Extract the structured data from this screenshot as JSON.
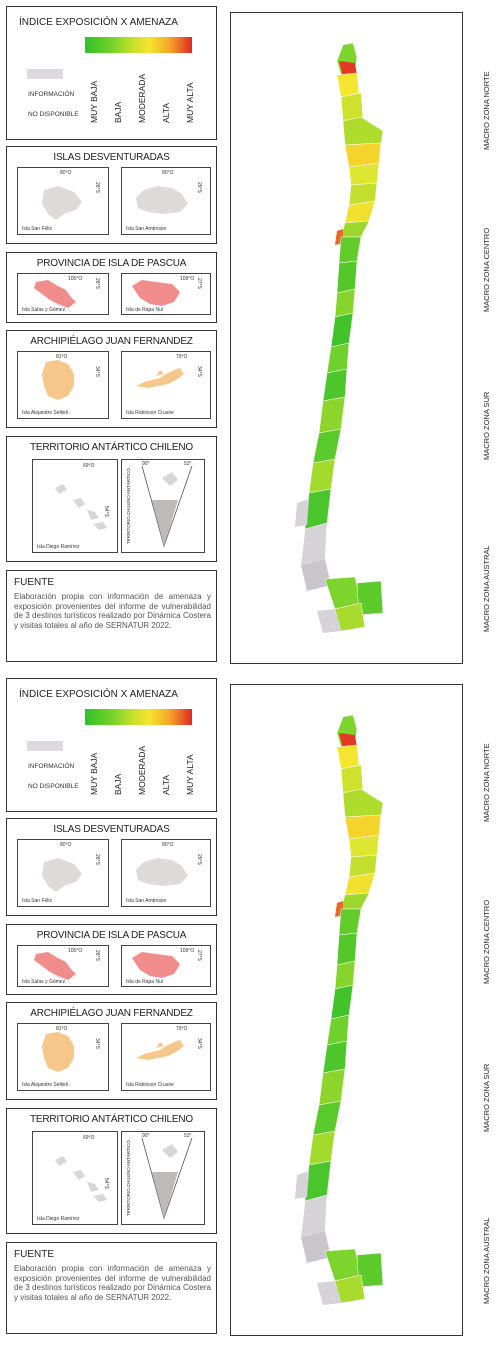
{
  "legend": {
    "title": "ÍNDICE EXPOSICIÓN X AMENAZA",
    "no_data_line1": "INFORMACIÓN",
    "no_data_line2": "NO DISPONIBLE",
    "classes": [
      "MUY BAJA",
      "BAJA",
      "MODERADA",
      "ALTA",
      "MUY ALTA"
    ],
    "gradient_colors": [
      "#2fc02a",
      "#74d22a",
      "#c8e02c",
      "#f5e52d",
      "#f3a129",
      "#e02722"
    ],
    "no_data_color": "#dcd9e0"
  },
  "desventuradas": {
    "title": "ISLAS DESVENTURADAS",
    "inset1": {
      "lon": "80°O",
      "lat": "26°S",
      "caption": "Isla San Félix"
    },
    "inset2": {
      "lon": "80°O",
      "lat": "26°S",
      "caption": "Isla San Ambrosio"
    }
  },
  "pascua": {
    "title": "PROVINCIA DE ISLA DE PASCUA",
    "inset1": {
      "lon": "105°O",
      "lat": "26°S",
      "caption": "Isla Salas y Gómez"
    },
    "inset2": {
      "lon": "109°O",
      "lat": "27°S",
      "caption": "Isla de Rapa Nui"
    }
  },
  "juan_fernandez": {
    "title": "ARCHIPIÉLAGO JUAN FERNANDEZ",
    "inset1": {
      "lon": "81°O",
      "lat": "34°S",
      "caption": "Isla Alejandro Selkirk"
    },
    "inset2": {
      "lon": "79°O",
      "lat": "34°S",
      "caption": "Isla Robinson Crusoe"
    }
  },
  "antartico": {
    "title": "TERRITORIO ANTÁRTICO CHILENO",
    "inset1": {
      "lon": "69°O",
      "lat": "54°S",
      "caption": "Isla Diego Ramírez"
    },
    "inset2": {
      "lon_left": "90°",
      "lon_right": "53°",
      "caption": "TERRITORIO CHILENO ANTÁRTICO"
    }
  },
  "fuente": {
    "title": "FUENTE",
    "text": "Elaboración propia con información de amenaza y exposición provenientes del informe de vulnerabilidad de 3 destinos turísticos realizado por Dinámica Costera y visitas totales al año de SERNATUR 2022."
  },
  "zones": [
    "MACRO ZONA NORTE",
    "MACRO ZONA CENTRO",
    "MACRO ZONA SUR",
    "MACRO ZONA AUSTRAL"
  ],
  "colors": {
    "pascua_fill": "#f08c8c",
    "juan_fernandez_fill": "#f5c78a",
    "desventuradas_fill": "#dedad9",
    "antartico_fill": "#d9d6d6"
  }
}
